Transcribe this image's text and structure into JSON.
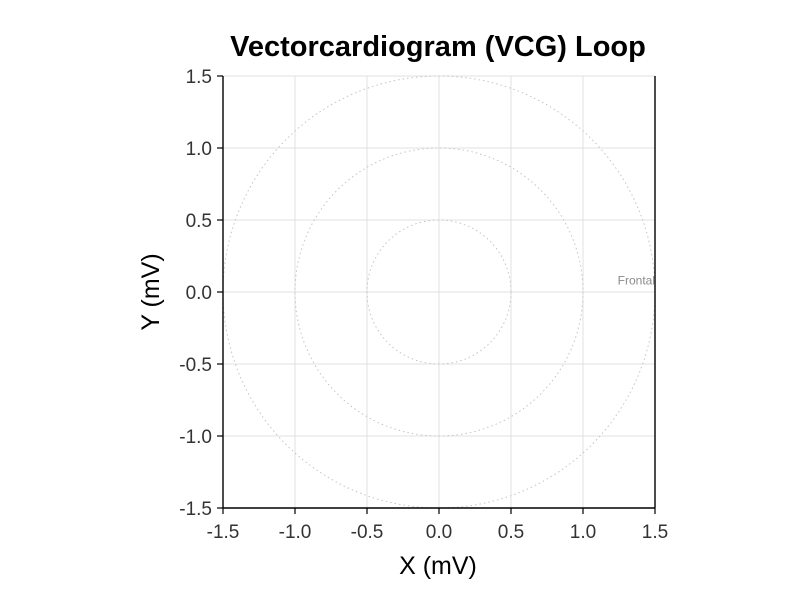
{
  "chart_data": {
    "type": "line",
    "title": "Vectorcardiogram (VCG) Loop",
    "xlabel": "X (mV)",
    "ylabel": "Y (mV)",
    "xlim": [
      -1.5,
      1.5
    ],
    "ylim": [
      -1.5,
      1.5
    ],
    "x_ticks": [
      -1.5,
      -1.0,
      -0.5,
      0.0,
      0.5,
      1.0,
      1.5
    ],
    "y_ticks": [
      -1.5,
      -1.0,
      -0.5,
      0.0,
      0.5,
      1.0,
      1.5
    ],
    "x_tick_labels": [
      "-1.5",
      "-1.0",
      "-0.5",
      "0.0",
      "0.5",
      "1.0",
      "1.5"
    ],
    "y_tick_labels": [
      "-1.5",
      "-1.0",
      "-0.5",
      "0.0",
      "0.5",
      "1.0",
      "1.5"
    ],
    "grid": true,
    "reference_circles_radius": [
      0.5,
      1.0,
      1.5
    ],
    "annotations": [
      {
        "text": "Frontal",
        "x": 1.5,
        "y": 0.08
      }
    ],
    "series": [],
    "colors": {
      "grid": "#d9d9d9",
      "circle": "#c4c4c4",
      "axis": "#000000",
      "annotation": "#8a8a8a"
    }
  }
}
